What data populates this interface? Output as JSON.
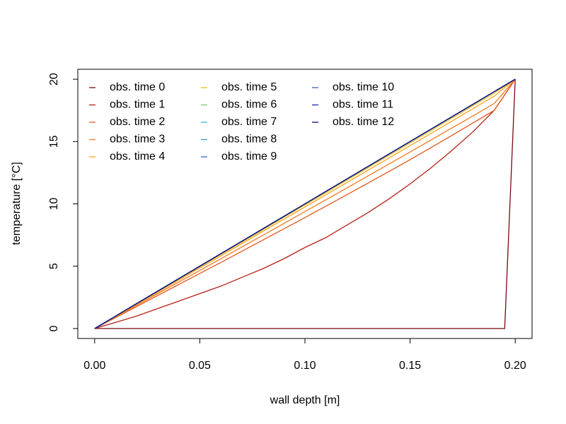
{
  "chart_data": {
    "type": "line",
    "title": "",
    "xlabel": "wall depth [m]",
    "ylabel": "temperature [°C]",
    "xlim": [
      -0.008,
      0.208
    ],
    "ylim": [
      -0.8,
      20.8
    ],
    "xticks": [
      0.0,
      0.05,
      0.1,
      0.15,
      0.2
    ],
    "xtick_labels": [
      "0.00",
      "0.05",
      "0.10",
      "0.15",
      "0.20"
    ],
    "yticks": [
      0,
      5,
      10,
      15,
      20
    ],
    "ytick_labels": [
      "0",
      "5",
      "10",
      "15",
      "20"
    ],
    "grid": false,
    "legend": {
      "position": "top-left",
      "columns": 3
    },
    "x": [
      0.0,
      0.01,
      0.02,
      0.03,
      0.04,
      0.05,
      0.06,
      0.07,
      0.08,
      0.09,
      0.1,
      0.11,
      0.12,
      0.13,
      0.14,
      0.15,
      0.16,
      0.17,
      0.18,
      0.19,
      0.2
    ],
    "series": [
      {
        "name": "obs. time 0",
        "color": "#7a0a12",
        "x": [
          0.0,
          0.195,
          0.2
        ],
        "values": [
          0.0,
          0.0,
          20.0
        ]
      },
      {
        "name": "obs. time 1",
        "color": "#b52014",
        "values": [
          0.0,
          0.5,
          1.0,
          1.6,
          2.2,
          2.8,
          3.4,
          4.1,
          4.8,
          5.6,
          6.5,
          7.3,
          8.3,
          9.3,
          10.4,
          11.6,
          12.9,
          14.3,
          15.8,
          17.5,
          20.0
        ]
      },
      {
        "name": "obs. time 2",
        "color": "#e4561f",
        "values": [
          0.0,
          0.88,
          1.76,
          2.65,
          3.53,
          4.42,
          5.3,
          6.2,
          7.1,
          8.0,
          8.9,
          9.82,
          10.74,
          11.67,
          12.6,
          13.55,
          14.52,
          15.5,
          16.5,
          17.5,
          20.0
        ]
      },
      {
        "name": "obs. time 3",
        "color": "#f07a1e",
        "values": [
          0.0,
          0.93,
          1.86,
          2.8,
          3.73,
          4.66,
          5.6,
          6.54,
          7.48,
          8.43,
          9.38,
          10.33,
          11.28,
          12.24,
          13.2,
          14.16,
          15.13,
          16.1,
          17.07,
          18.05,
          20.0
        ]
      },
      {
        "name": "obs. time 4",
        "color": "#f6a21f",
        "values": [
          0.0,
          0.97,
          1.94,
          2.91,
          3.88,
          4.86,
          5.83,
          6.81,
          7.79,
          8.77,
          9.75,
          10.73,
          11.71,
          12.7,
          13.68,
          14.67,
          15.66,
          16.65,
          17.65,
          18.64,
          20.0
        ]
      },
      {
        "name": "obs. time 5",
        "color": "#e3c227",
        "values": [
          0.0,
          0.99,
          1.98,
          2.97,
          3.96,
          4.95,
          5.94,
          6.93,
          7.92,
          8.92,
          9.91,
          10.9,
          11.9,
          12.89,
          13.89,
          14.88,
          15.88,
          16.88,
          17.88,
          18.88,
          20.0
        ]
      },
      {
        "name": "obs. time 6",
        "color": "#7fbf6e",
        "values": [
          0.0,
          1.0,
          2.0,
          3.0,
          4.0,
          5.0,
          6.0,
          7.0,
          8.0,
          9.0,
          10.0,
          11.0,
          12.0,
          13.0,
          14.0,
          15.0,
          16.0,
          17.0,
          18.0,
          19.0,
          20.0
        ]
      },
      {
        "name": "obs. time 7",
        "color": "#3fb6d8",
        "values": [
          0.0,
          1.0,
          2.0,
          3.0,
          4.0,
          5.0,
          6.0,
          7.0,
          8.0,
          9.0,
          10.0,
          11.0,
          12.0,
          13.0,
          14.0,
          15.0,
          16.0,
          17.0,
          18.0,
          19.0,
          20.0
        ]
      },
      {
        "name": "obs. time 8",
        "color": "#2c98d0",
        "values": [
          0.0,
          1.0,
          2.0,
          3.0,
          4.0,
          5.0,
          6.0,
          7.0,
          8.0,
          9.0,
          10.0,
          11.0,
          12.0,
          13.0,
          14.0,
          15.0,
          16.0,
          17.0,
          18.0,
          19.0,
          20.0
        ]
      },
      {
        "name": "obs. time 9",
        "color": "#2d6ec1",
        "values": [
          0.0,
          1.0,
          2.0,
          3.0,
          4.0,
          5.0,
          6.0,
          7.0,
          8.0,
          9.0,
          10.0,
          11.0,
          12.0,
          13.0,
          14.0,
          15.0,
          16.0,
          17.0,
          18.0,
          19.0,
          20.0
        ]
      },
      {
        "name": "obs. time 10",
        "color": "#3f5bb8",
        "values": [
          0.0,
          1.0,
          2.0,
          3.0,
          4.0,
          5.0,
          6.0,
          7.0,
          8.0,
          9.0,
          10.0,
          11.0,
          12.0,
          13.0,
          14.0,
          15.0,
          16.0,
          17.0,
          18.0,
          19.0,
          20.0
        ]
      },
      {
        "name": "obs. time 11",
        "color": "#2322b0",
        "values": [
          0.0,
          1.0,
          2.0,
          3.0,
          4.0,
          5.0,
          6.0,
          7.0,
          8.0,
          9.0,
          10.0,
          11.0,
          12.0,
          13.0,
          14.0,
          15.0,
          16.0,
          17.0,
          18.0,
          19.0,
          20.0
        ]
      },
      {
        "name": "obs. time 12",
        "color": "#0b0f7a",
        "values": [
          0.0,
          1.0,
          2.0,
          3.0,
          4.0,
          5.0,
          6.0,
          7.0,
          8.0,
          9.0,
          10.0,
          11.0,
          12.0,
          13.0,
          14.0,
          15.0,
          16.0,
          17.0,
          18.0,
          19.0,
          20.0
        ]
      }
    ]
  }
}
